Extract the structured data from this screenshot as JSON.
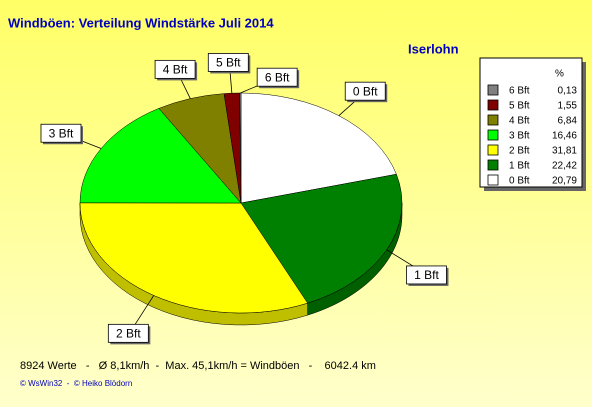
{
  "chart_data": {
    "type": "pie",
    "title": "Windböen: Verteilung Windstärke  Juli 2014",
    "subtitle": "Iserlohn",
    "categories": [
      "0 Bft",
      "1 Bft",
      "2 Bft",
      "3 Bft",
      "4 Bft",
      "5 Bft",
      "6 Bft"
    ],
    "values": [
      20.79,
      22.42,
      31.81,
      16.46,
      6.84,
      1.55,
      0.13
    ],
    "value_labels": [
      "20,79",
      "22,42",
      "31,81",
      "16,46",
      "6,84",
      "1,55",
      "0,13"
    ],
    "colors": [
      "#ffffff",
      "#008000",
      "#ffff00",
      "#00ff00",
      "#808000",
      "#800000",
      "#808080"
    ],
    "legend_title": "%",
    "footer": "8924 Werte   -   Ø 8,1km/h  -  Max. 45,1km/h = Windböen   -    6042.4 km",
    "credits": "© WsWin32  -  © Heiko Blödorn"
  }
}
